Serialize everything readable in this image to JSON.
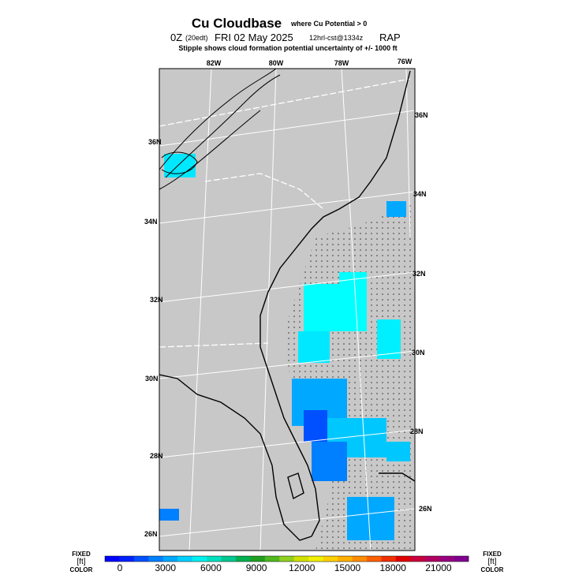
{
  "header": {
    "title": "Cu Cloudbase",
    "title_note": "where Cu Potential > 0",
    "run_time": "0Z",
    "local_time": "(20edt)",
    "date": "FRI 02 May 2025",
    "run_info": "12hrl-cst@1334z",
    "model": "RAP",
    "note": "Stipple shows cloud formation potential uncertainty of +/-  1000 ft"
  },
  "map": {
    "lon_labels": [
      "82W",
      "80W",
      "78W",
      "76W"
    ],
    "lat_labels_left": [
      "36N",
      "34N",
      "32N",
      "30N",
      "28N",
      "26N"
    ],
    "lat_labels_right": [
      "36N",
      "34N",
      "32N",
      "30N",
      "28N",
      "26N"
    ]
  },
  "colorbar": {
    "left_label": [
      "FIXED",
      "[ft]",
      "COLOR"
    ],
    "right_label": [
      "FIXED",
      "[ft]",
      "COLOR"
    ],
    "ticks": [
      0,
      3000,
      6000,
      9000,
      12000,
      15000,
      18000,
      21000
    ],
    "colors": [
      "#0000ff",
      "#0020ff",
      "#0050ff",
      "#0080ff",
      "#00a8ff",
      "#00d0ff",
      "#00f0f0",
      "#00e0c0",
      "#00c890",
      "#00b050",
      "#20a020",
      "#50b820",
      "#90d020",
      "#d0e000",
      "#f0f000",
      "#ffd000",
      "#ffb000",
      "#ff8c00",
      "#ff6000",
      "#f03000",
      "#e00000",
      "#c8003c",
      "#b00060",
      "#980080",
      "#800090"
    ]
  }
}
